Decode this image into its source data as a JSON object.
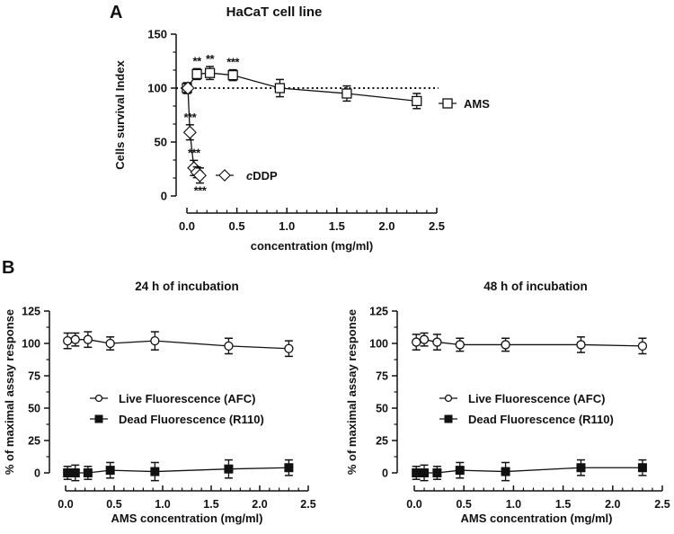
{
  "figure": {
    "panel_labels": [
      "A",
      "B"
    ],
    "colors": {
      "ink": "#111111",
      "background": "#ffffff",
      "open_marker_fill": "#ffffff"
    }
  },
  "chart_data": [
    {
      "id": "panelA",
      "panel": "A",
      "type": "line",
      "title": "HaCaT cell line",
      "xlabel": "concentration (mg/ml)",
      "ylabel": "Cells survival Index",
      "xlim": [
        0,
        2.5
      ],
      "ylim": [
        0,
        150
      ],
      "xticks": [
        0.0,
        0.5,
        1.0,
        1.5,
        2.0,
        2.5
      ],
      "xtick_labels": [
        "0.0",
        "0.5",
        "1.0",
        "1.5",
        "2.0",
        "2.5"
      ],
      "yticks": [
        0,
        50,
        100,
        150
      ],
      "ytick_labels": [
        "0",
        "50",
        "100",
        "150"
      ],
      "reference_line": {
        "y": 100,
        "style": "dotted"
      },
      "grid": false,
      "series": [
        {
          "name": "AMS",
          "marker": "open-square",
          "legend_position": "right",
          "x": [
            0.0,
            0.1,
            0.23,
            0.46,
            0.93,
            1.6,
            2.3
          ],
          "y": [
            100,
            113,
            114,
            112,
            100,
            95,
            88
          ],
          "err": [
            5,
            5,
            6,
            5,
            8,
            7,
            7
          ],
          "annotations": [
            "",
            "**",
            "**",
            "***",
            "",
            "",
            ""
          ]
        },
        {
          "name": "cDDP",
          "name_italic_prefix": "c",
          "name_rest": "DDP",
          "marker": "open-diamond",
          "legend_position": "center",
          "x": [
            0.01,
            0.03,
            0.07,
            0.1,
            0.13
          ],
          "y": [
            100,
            59,
            26,
            22,
            19
          ],
          "err": [
            4,
            7,
            7,
            5,
            7
          ],
          "annotations": [
            "",
            "***",
            "***",
            "",
            "***"
          ]
        }
      ]
    },
    {
      "id": "panelB1",
      "panel": "B",
      "type": "line",
      "title": "24 h of incubation",
      "xlabel": "AMS concentration (mg/ml)",
      "ylabel": "% of maximal assay response",
      "xlim": [
        0,
        2.5
      ],
      "ylim": [
        0,
        125
      ],
      "xticks": [
        0.0,
        0.5,
        1.0,
        1.5,
        2.0,
        2.5
      ],
      "xtick_labels": [
        "0.0",
        "0.5",
        "1.0",
        "1.5",
        "2.0",
        "2.5"
      ],
      "yticks": [
        0,
        25,
        50,
        75,
        100,
        125
      ],
      "ytick_labels": [
        "0",
        "25",
        "50",
        "75",
        "100",
        "125"
      ],
      "grid": false,
      "legend_position": "center",
      "series": [
        {
          "name": "Live Fluorescence (AFC)",
          "marker": "open-circle",
          "x": [
            0.02,
            0.1,
            0.23,
            0.46,
            0.92,
            1.68,
            2.3
          ],
          "y": [
            102,
            103,
            103,
            100,
            102,
            98,
            96
          ],
          "err": [
            6,
            5,
            6,
            5,
            7,
            6,
            6
          ]
        },
        {
          "name": "Dead Fluorescence (R110)",
          "marker": "filled-square",
          "x": [
            0.02,
            0.1,
            0.23,
            0.46,
            0.92,
            1.68,
            2.3
          ],
          "y": [
            0,
            0,
            0,
            2,
            1,
            3,
            4
          ],
          "err": [
            5,
            6,
            5,
            6,
            7,
            7,
            6
          ]
        }
      ]
    },
    {
      "id": "panelB2",
      "panel": "B",
      "type": "line",
      "title": "48 h of incubation",
      "xlabel": "AMS concentration (mg/ml)",
      "ylabel": "% of maximal assay response",
      "xlim": [
        0,
        2.5
      ],
      "ylim": [
        0,
        125
      ],
      "xticks": [
        0.0,
        0.5,
        1.0,
        1.5,
        2.0,
        2.5
      ],
      "xtick_labels": [
        "0.0",
        "0.5",
        "1.0",
        "1.5",
        "2.0",
        "2.5"
      ],
      "yticks": [
        0,
        25,
        50,
        75,
        100,
        125
      ],
      "ytick_labels": [
        "0",
        "25",
        "50",
        "75",
        "100",
        "125"
      ],
      "grid": false,
      "legend_position": "center",
      "series": [
        {
          "name": "Live Fluorescence (AFC)",
          "marker": "open-circle",
          "x": [
            0.02,
            0.1,
            0.23,
            0.46,
            0.92,
            1.68,
            2.3
          ],
          "y": [
            101,
            103,
            101,
            99,
            99,
            99,
            98
          ],
          "err": [
            6,
            5,
            6,
            5,
            5,
            6,
            6
          ]
        },
        {
          "name": "Dead Fluorescence (R110)",
          "marker": "filled-square",
          "x": [
            0.02,
            0.1,
            0.23,
            0.46,
            0.92,
            1.68,
            2.3
          ],
          "y": [
            0,
            0,
            0,
            2,
            1,
            4,
            4
          ],
          "err": [
            5,
            6,
            5,
            6,
            7,
            6,
            6
          ]
        }
      ]
    }
  ]
}
